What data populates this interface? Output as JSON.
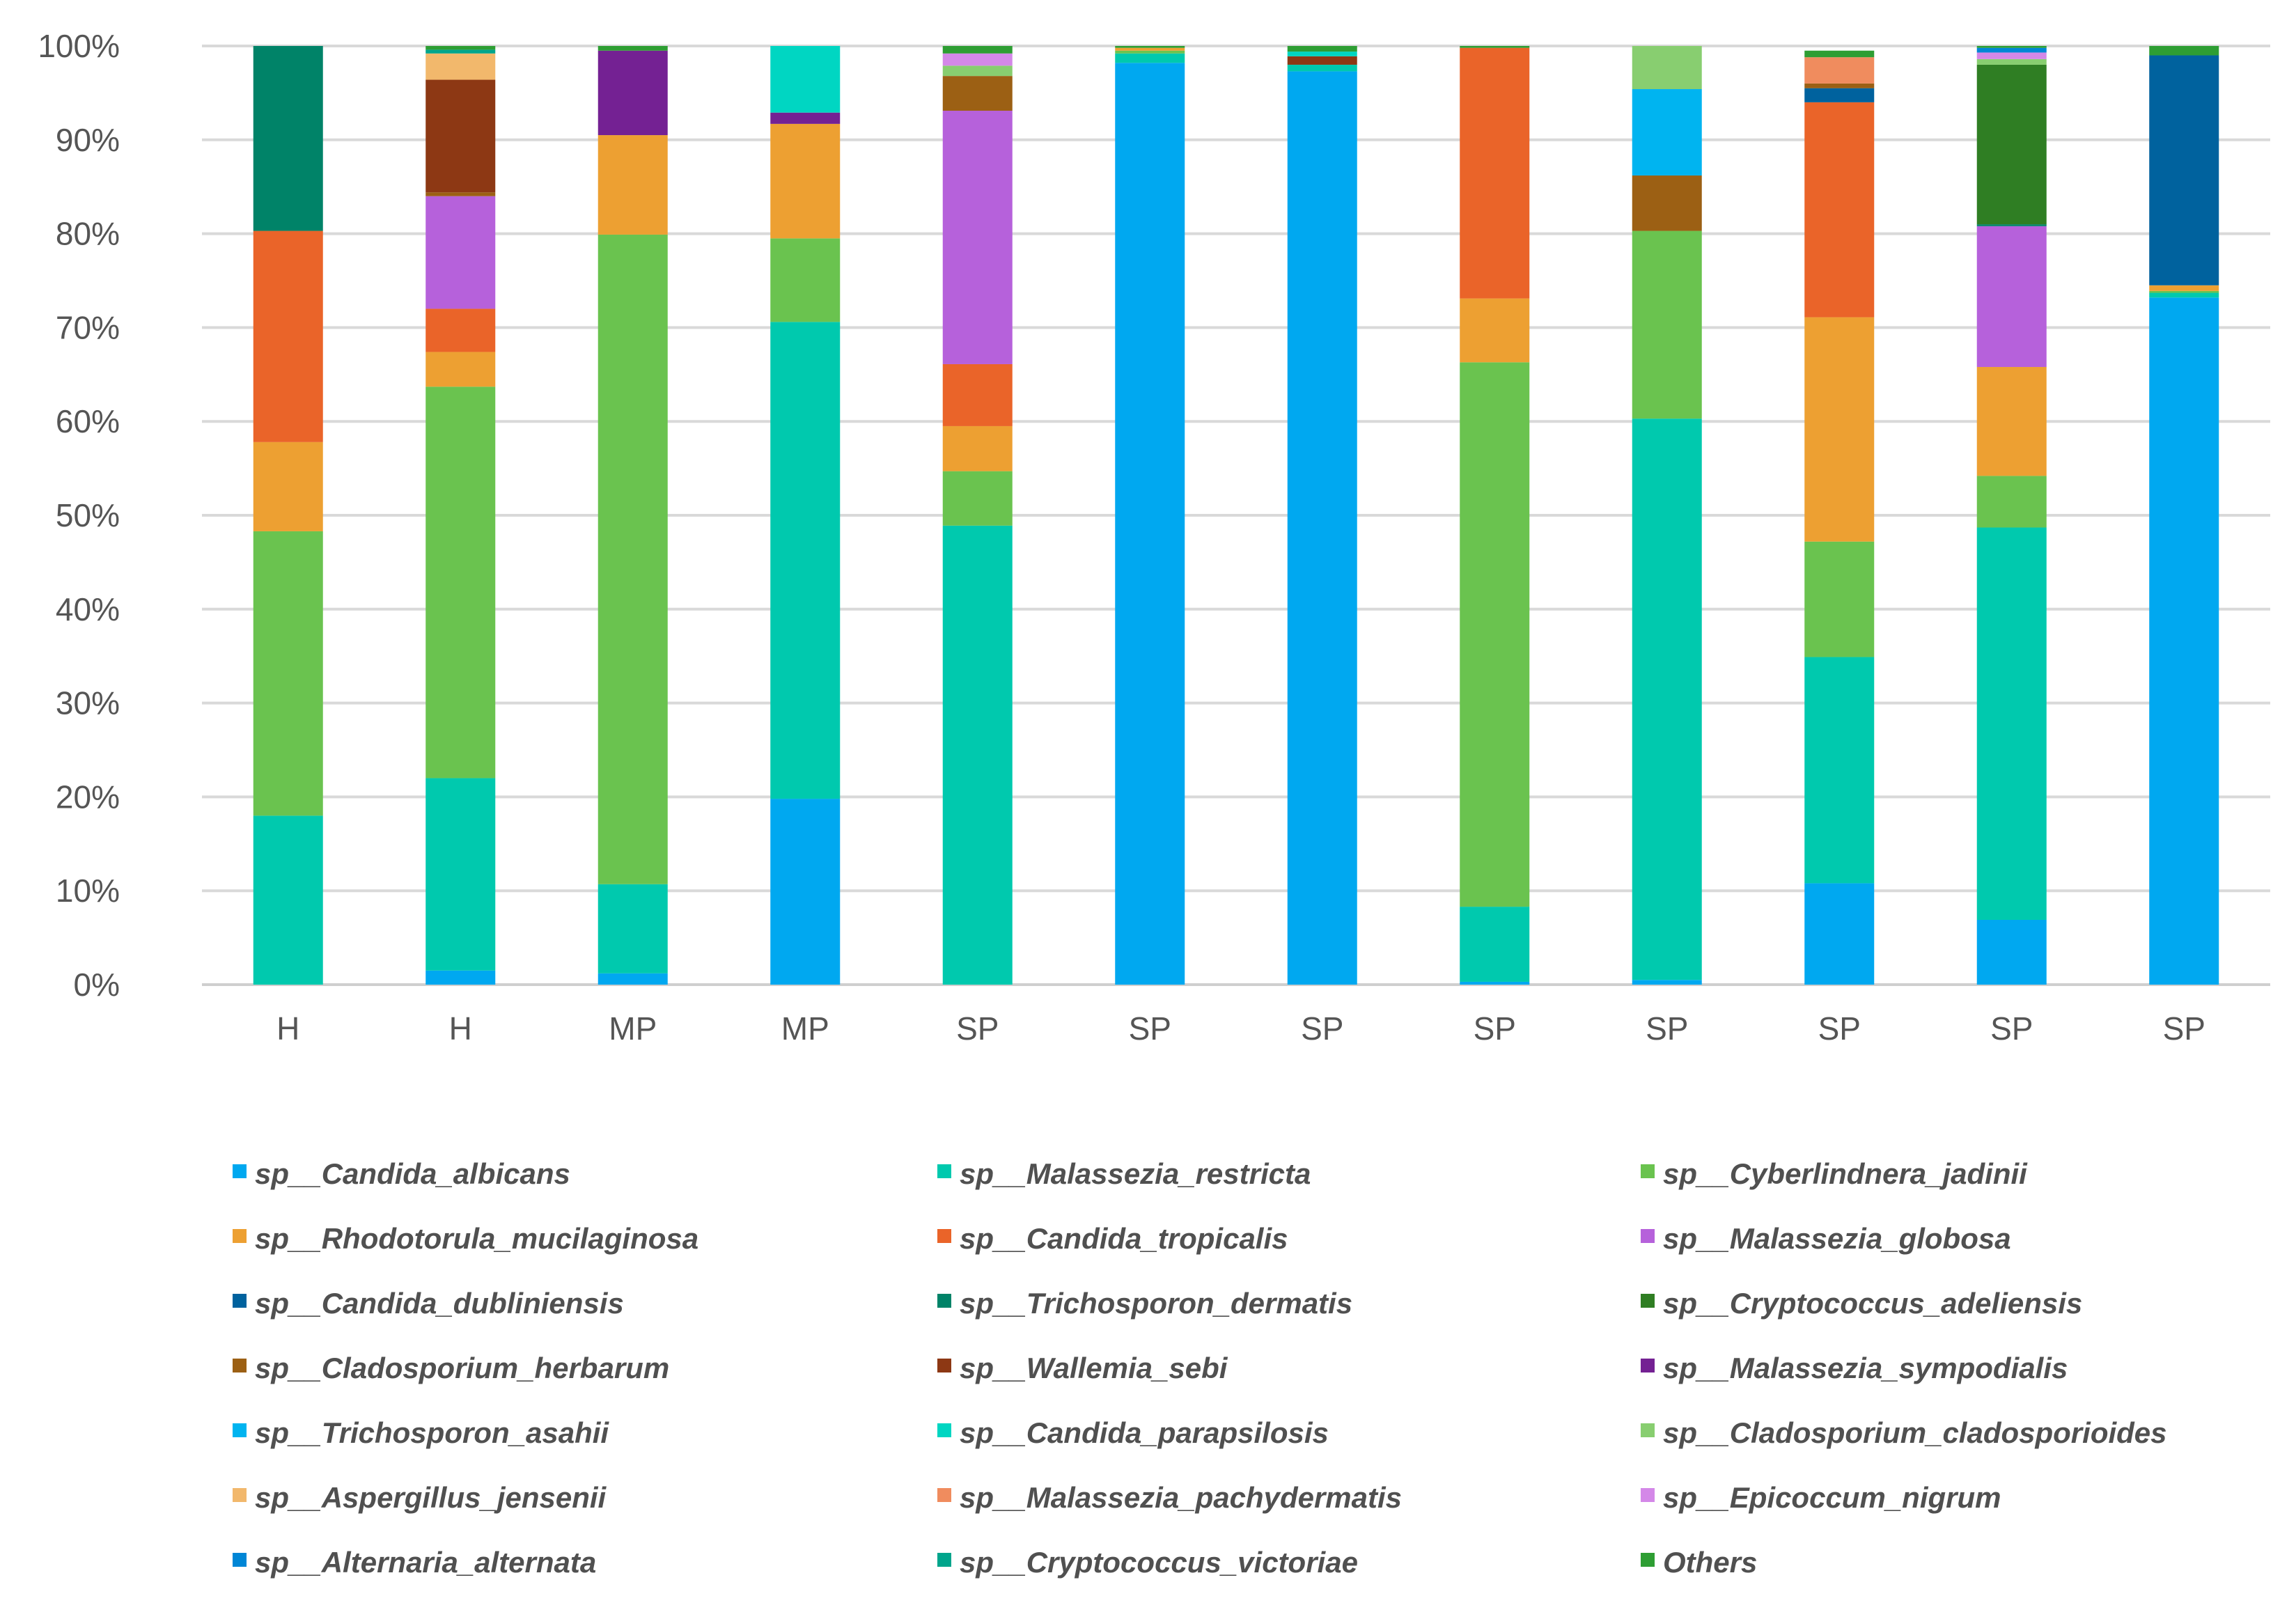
{
  "chart_data": {
    "type": "bar",
    "stacked": true,
    "percent_axis": true,
    "ylim": [
      0,
      100
    ],
    "y_ticks": [
      "0%",
      "10%",
      "20%",
      "30%",
      "40%",
      "50%",
      "60%",
      "70%",
      "80%",
      "90%",
      "100%"
    ],
    "grid": "horizontal",
    "legend_position": "bottom",
    "categories": [
      "H",
      "H",
      "MP",
      "MP",
      "SP",
      "SP",
      "SP",
      "SP",
      "SP",
      "SP",
      "SP",
      "SP"
    ],
    "series": [
      {
        "name": "sp__Candida_albicans",
        "color": "#00A8F0",
        "values": [
          0,
          1.5,
          1.2,
          19.8,
          0,
          98.2,
          97.3,
          0.3,
          0.5,
          10.8,
          6.9,
          73.2
        ]
      },
      {
        "name": "sp__Malassezia_restricta",
        "color": "#00C9AE",
        "values": [
          18.0,
          20.5,
          9.5,
          50.8,
          48.9,
          1.0,
          0.7,
          8.0,
          59.8,
          24.1,
          41.8,
          0.5
        ]
      },
      {
        "name": "sp__Cyberlindnera_jadinii",
        "color": "#6AC34F",
        "values": [
          30.3,
          41.7,
          69.2,
          8.9,
          5.8,
          0.3,
          0,
          58.0,
          20.0,
          12.3,
          5.5,
          0.2
        ]
      },
      {
        "name": "sp__Rhodotorula_mucilaginosa",
        "color": "#EDA032",
        "values": [
          9.5,
          3.7,
          10.6,
          12.2,
          4.8,
          0.3,
          0,
          6.8,
          0,
          23.9,
          11.6,
          0.6
        ]
      },
      {
        "name": "sp__Candida_tropicalis",
        "color": "#EA6429",
        "values": [
          22.5,
          4.6,
          0,
          0,
          6.6,
          0,
          0,
          26.7,
          0,
          22.9,
          0,
          0
        ]
      },
      {
        "name": "sp__Malassezia_globosa",
        "color": "#B661DB",
        "values": [
          0,
          12.0,
          0,
          0,
          27.0,
          0,
          0,
          0,
          0,
          0,
          15.0,
          0
        ]
      },
      {
        "name": "sp__Candida_dubliniensis",
        "color": "#00629E",
        "values": [
          0,
          0,
          0,
          0,
          0,
          0,
          0,
          0,
          0,
          1.5,
          0,
          24.5
        ]
      },
      {
        "name": "sp__Trichosporon_dermatis",
        "color": "#008368",
        "values": [
          19.7,
          0,
          0,
          0,
          0,
          0,
          0,
          0,
          0,
          0,
          0.2,
          0
        ]
      },
      {
        "name": "sp__Cryptococcus_adeliensis",
        "color": "#2F7E23",
        "values": [
          0,
          0,
          0,
          0,
          0,
          0,
          0,
          0,
          0,
          0,
          17.0,
          0
        ]
      },
      {
        "name": "sp__Cladosporium_herbarum",
        "color": "#9C6014",
        "values": [
          0,
          0.4,
          0,
          0,
          3.7,
          0,
          0,
          0,
          5.9,
          0.5,
          0,
          0
        ]
      },
      {
        "name": "sp__Wallemia_sebi",
        "color": "#8D3814",
        "values": [
          0,
          12.0,
          0,
          0,
          0,
          0,
          0.9,
          0,
          0,
          0,
          0,
          0
        ]
      },
      {
        "name": "sp__Malassezia_sympodialis",
        "color": "#742193",
        "values": [
          0,
          0,
          9.0,
          1.2,
          0,
          0,
          0,
          0,
          0,
          0,
          0,
          0
        ]
      },
      {
        "name": "sp__Trichosporon_asahii",
        "color": "#00B4F0",
        "values": [
          0,
          0,
          0,
          0,
          0,
          0,
          0,
          0,
          9.2,
          0,
          0,
          0
        ]
      },
      {
        "name": "sp__Candida_parapsilosis",
        "color": "#00D6C2",
        "values": [
          0,
          0,
          0,
          7.1,
          0,
          0,
          0.5,
          0,
          0,
          0,
          0,
          0
        ]
      },
      {
        "name": "sp__Cladosporium_cladosporioides",
        "color": "#88CE70",
        "values": [
          0,
          0,
          0,
          0,
          1.1,
          0,
          0,
          0,
          4.6,
          0,
          0.6,
          0
        ]
      },
      {
        "name": "sp__Aspergillus_jensenii",
        "color": "#F2B86C",
        "values": [
          0,
          2.8,
          0,
          0,
          0,
          0,
          0,
          0,
          0,
          0,
          0,
          0
        ]
      },
      {
        "name": "sp__Malassezia_pachydermatis",
        "color": "#F08C5E",
        "values": [
          0,
          0,
          0,
          0,
          0,
          0,
          0,
          0,
          0,
          2.8,
          0,
          0
        ]
      },
      {
        "name": "sp__Epicoccum_nigrum",
        "color": "#D488E8",
        "values": [
          0,
          0,
          0,
          0,
          1.3,
          0,
          0,
          0,
          0,
          0,
          0.7,
          0
        ]
      },
      {
        "name": "sp__Alternaria_alternata",
        "color": "#0086D6",
        "values": [
          0,
          0,
          0,
          0,
          0,
          0,
          0,
          0,
          0,
          0,
          0.5,
          0
        ]
      },
      {
        "name": "sp__Cryptococcus_victoriae",
        "color": "#00A58C",
        "values": [
          0,
          0.4,
          0,
          0,
          0,
          0,
          0,
          0,
          0,
          0,
          0,
          0
        ]
      },
      {
        "name": "Others",
        "color": "#2E9E33",
        "values": [
          0,
          0.4,
          0.5,
          0,
          0.8,
          0.2,
          0.6,
          0.2,
          0,
          0.7,
          0.2,
          1.0
        ]
      }
    ]
  }
}
